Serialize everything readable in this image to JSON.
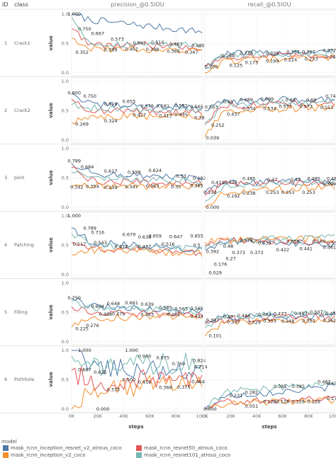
{
  "header": {
    "id_label": "ID",
    "class_label": "class"
  },
  "columns": [
    "precision_@0.5IOU",
    "recall_@0.5IOU"
  ],
  "x_axis_title": "steps",
  "y_axis_title": "value",
  "legend": {
    "title": "model",
    "entries": [
      {
        "name": "mask_rcnn_inception_resnet_v2_atrous_coco",
        "color": "#4e79a7"
      },
      {
        "name": "mask_rcnn_resnet50_atrous_coco",
        "color": "#e15759"
      },
      {
        "name": "mask_rcnn_inception_v2_coco",
        "color": "#f28e2b"
      },
      {
        "name": "mask_rcnn_resnet101_atrous_coco",
        "color": "#76b7b2"
      }
    ]
  },
  "rows": [
    {
      "id": "1",
      "class": "Crack1"
    },
    {
      "id": "2",
      "class": "Crack2"
    },
    {
      "id": "3",
      "class": "Joint"
    },
    {
      "id": "4",
      "class": "Patching"
    },
    {
      "id": "5",
      "class": "Filling"
    },
    {
      "id": "6",
      "class": "Pothhole"
    }
  ],
  "chart_data": {
    "type": "line",
    "xlabel": "steps",
    "ylabel": "value",
    "xlim": [
      0,
      100000
    ],
    "ylim": [
      0,
      1
    ],
    "x_ticks": [
      "0K",
      "20K",
      "40K",
      "60K",
      "80K",
      "100K"
    ],
    "y_ticks": [
      "0.0",
      "0.5",
      "1.0"
    ],
    "series_names": [
      "mask_rcnn_inception_resnet_v2_atrous_coco",
      "mask_rcnn_resnet50_atrous_coco",
      "mask_rcnn_inception_v2_coco",
      "mask_rcnn_resnet101_atrous_coco"
    ],
    "panels": [
      {
        "row": "Crack1",
        "metric": "precision_@0.5IOU",
        "labels": [
          [
            2000,
            1.0,
            "1.000"
          ],
          [
            10000,
            0.75,
            "0.750"
          ],
          [
            20000,
            0.667,
            "0.667"
          ],
          [
            35000,
            0.573,
            "0.573"
          ],
          [
            52000,
            0.507,
            "0.507"
          ],
          [
            66000,
            0.516,
            "0.516"
          ],
          [
            80000,
            0.487,
            "0.487"
          ],
          [
            97000,
            0.465,
            "0.465"
          ],
          [
            8000,
            0.352,
            "0.352"
          ],
          [
            30000,
            0.389,
            "0.389"
          ],
          [
            46000,
            0.402,
            "0.402"
          ],
          [
            62000,
            0.398,
            "0.398"
          ],
          [
            78000,
            0.369,
            "0.369"
          ],
          [
            92000,
            0.347,
            "0.347"
          ]
        ]
      },
      {
        "row": "Crack1",
        "metric": "recall_@0.5IOU",
        "labels": [
          [
            5000,
            0.1,
            "0.100"
          ],
          [
            18000,
            0.288,
            "0.288"
          ],
          [
            32000,
            0.338,
            "0.338"
          ],
          [
            52000,
            0.329,
            "0.329"
          ],
          [
            68000,
            0.353,
            "0.353"
          ],
          [
            80000,
            0.357,
            "0.357"
          ],
          [
            96000,
            0.377,
            "0.377"
          ],
          [
            24000,
            0.125,
            "0.125"
          ],
          [
            36000,
            0.173,
            "0.173"
          ],
          [
            52000,
            0.199,
            "0.199"
          ],
          [
            66000,
            0.224,
            "0.224"
          ],
          [
            82000,
            0.233,
            "0.233"
          ],
          [
            98000,
            0.269,
            "0.269"
          ]
        ]
      },
      {
        "row": "Crack2",
        "metric": "precision_@0.5IOU",
        "labels": [
          [
            2000,
            0.8,
            "0.800"
          ],
          [
            14000,
            0.75,
            "0.750"
          ],
          [
            30000,
            0.616,
            "0.616"
          ],
          [
            44000,
            0.655,
            "0.655"
          ],
          [
            58000,
            0.579,
            "0.579"
          ],
          [
            70000,
            0.581,
            "0.581"
          ],
          [
            84000,
            0.582,
            "0.582"
          ],
          [
            96000,
            0.565,
            "0.565"
          ],
          [
            8000,
            0.269,
            "0.269"
          ],
          [
            30000,
            0.324,
            "0.324"
          ],
          [
            52000,
            0.427,
            "0.427"
          ],
          [
            72000,
            0.413,
            "0.413"
          ],
          [
            84000,
            0.435,
            "0.435"
          ],
          [
            98000,
            0.38,
            "0.38"
          ]
        ]
      },
      {
        "row": "Crack2",
        "metric": "recall_@0.5IOU",
        "labels": [
          [
            5000,
            0.563,
            "0.563"
          ],
          [
            18000,
            0.65,
            "0.65"
          ],
          [
            32000,
            0.689,
            "0.689"
          ],
          [
            48000,
            0.699,
            "0.699"
          ],
          [
            66000,
            0.68,
            "0.68"
          ],
          [
            82000,
            0.68,
            "0.68"
          ],
          [
            98000,
            0.748,
            "0.748"
          ],
          [
            10000,
            0.252,
            "0.252"
          ],
          [
            22000,
            0.437,
            "0.437"
          ],
          [
            34000,
            0.534,
            "0.534"
          ],
          [
            50000,
            0.534,
            "0.534"
          ],
          [
            62000,
            0.573,
            "0.573"
          ],
          [
            78000,
            0.573,
            "0.573"
          ],
          [
            94000,
            0.553,
            "0.553"
          ],
          [
            6000,
            0.039,
            "0.039"
          ]
        ]
      },
      {
        "row": "Joint",
        "metric": "precision_@0.5IOU",
        "labels": [
          [
            2000,
            0.789,
            "0.789"
          ],
          [
            12000,
            0.684,
            "0.684"
          ],
          [
            30000,
            0.617,
            "0.617"
          ],
          [
            48000,
            0.598,
            "0.598"
          ],
          [
            64000,
            0.624,
            "0.624"
          ],
          [
            84000,
            0.53,
            "0.53"
          ],
          [
            98000,
            0.492,
            "0.492"
          ],
          [
            4000,
            0.342,
            "0.342"
          ],
          [
            16000,
            0.354,
            "0.354"
          ],
          [
            30000,
            0.339,
            "0.339"
          ],
          [
            46000,
            0.347,
            "0.347"
          ],
          [
            62000,
            0.363,
            "0.363"
          ],
          [
            80000,
            0.35,
            "0.35"
          ],
          [
            96000,
            0.365,
            "0.365"
          ]
        ]
      },
      {
        "row": "Joint",
        "metric": "recall_@0.5IOU",
        "labels": [
          [
            10000,
            0.419,
            "0.419"
          ],
          [
            20000,
            0.429,
            "0.429"
          ],
          [
            34000,
            0.485,
            "0.485"
          ],
          [
            52000,
            0.47,
            "0.47"
          ],
          [
            70000,
            0.47,
            "0.47"
          ],
          [
            84000,
            0.485,
            "0.485"
          ],
          [
            99000,
            0.485,
            "0.485"
          ],
          [
            4000,
            0.253,
            "0.253"
          ],
          [
            22000,
            0.192,
            "0.192"
          ],
          [
            34000,
            0.238,
            "0.238"
          ],
          [
            52000,
            0.253,
            "0.253"
          ],
          [
            64000,
            0.253,
            "0.253"
          ],
          [
            80000,
            0.253,
            "0.253"
          ],
          [
            96000,
            0.399,
            "0.399"
          ],
          [
            6000,
            0.0,
            "0.000"
          ]
        ]
      },
      {
        "row": "Patching",
        "metric": "precision_@0.5IOU",
        "labels": [
          [
            2000,
            1.0,
            "1.000"
          ],
          [
            14000,
            0.789,
            "0.789"
          ],
          [
            20000,
            0.716,
            "0.716"
          ],
          [
            44000,
            0.679,
            "0.679"
          ],
          [
            56000,
            0.638,
            "0.638"
          ],
          [
            64000,
            0.659,
            "0.659"
          ],
          [
            80000,
            0.647,
            "0.647"
          ],
          [
            96000,
            0.655,
            "0.655"
          ],
          [
            6000,
            0.517,
            "0.517"
          ],
          [
            22000,
            0.543,
            "0.543"
          ],
          [
            38000,
            0.474,
            "0.474"
          ],
          [
            56000,
            0.477,
            "0.477"
          ],
          [
            74000,
            0.516,
            "0.516"
          ],
          [
            96000,
            0.5,
            "0.5"
          ]
        ]
      },
      {
        "row": "Patching",
        "metric": "recall_@0.5IOU",
        "labels": [
          [
            6000,
            0.392,
            "0.392"
          ],
          [
            18000,
            0.48,
            "0.48"
          ],
          [
            32000,
            0.578,
            "0.578"
          ],
          [
            46000,
            0.539,
            "0.539"
          ],
          [
            68000,
            0.559,
            "0.559"
          ],
          [
            88000,
            0.569,
            "0.569"
          ],
          [
            99000,
            0.539,
            "0.539"
          ],
          [
            12000,
            0.176,
            "0.176"
          ],
          [
            20000,
            0.27,
            "0.27"
          ],
          [
            26000,
            0.373,
            "0.373"
          ],
          [
            40000,
            0.373,
            "0.373"
          ],
          [
            60000,
            0.422,
            "0.422"
          ],
          [
            78000,
            0.441,
            "0.441"
          ],
          [
            96000,
            0.461,
            "0.461"
          ],
          [
            8000,
            0.029,
            "0.029"
          ]
        ]
      },
      {
        "row": "Filling",
        "metric": "precision_@0.5IOU",
        "labels": [
          [
            2000,
            0.75,
            "0.750"
          ],
          [
            20000,
            0.604,
            "0.604"
          ],
          [
            32000,
            0.648,
            "0.648"
          ],
          [
            46000,
            0.661,
            "0.661"
          ],
          [
            58000,
            0.639,
            "0.639"
          ],
          [
            72000,
            0.585,
            "0.585"
          ],
          [
            84000,
            0.563,
            "0.563"
          ],
          [
            96000,
            0.565,
            "0.565"
          ],
          [
            8000,
            0.225,
            "0.225"
          ],
          [
            16000,
            0.276,
            "0.276"
          ],
          [
            26000,
            0.468,
            "0.468"
          ],
          [
            36000,
            0.475,
            "0.475"
          ],
          [
            58000,
            0.463,
            "0.463"
          ],
          [
            78000,
            0.464,
            "0.464"
          ],
          [
            96000,
            0.434,
            "0.434"
          ]
        ]
      },
      {
        "row": "Filling",
        "metric": "recall_@0.5IOU",
        "labels": [
          [
            6000,
            0.367,
            "0.367"
          ],
          [
            18000,
            0.42,
            "0.42"
          ],
          [
            30000,
            0.444,
            "0.444"
          ],
          [
            46000,
            0.464,
            "0.464"
          ],
          [
            58000,
            0.473,
            "0.473"
          ],
          [
            74000,
            0.483,
            "0.483"
          ],
          [
            86000,
            0.507,
            "0.507"
          ],
          [
            98000,
            0.483,
            "0.483"
          ],
          [
            22000,
            0.337,
            "0.337"
          ],
          [
            38000,
            0.329,
            "0.329"
          ],
          [
            50000,
            0.353,
            "0.353"
          ],
          [
            64000,
            0.348,
            "0.348"
          ],
          [
            80000,
            0.353,
            "0.353"
          ],
          [
            96000,
            0.362,
            "0.362"
          ],
          [
            8000,
            0.101,
            "0.101"
          ]
        ]
      },
      {
        "row": "Pothhole",
        "metric": "precision_@0.5IOU",
        "labels": [
          [
            10000,
            1.0,
            "1.000"
          ],
          [
            46000,
            1.0,
            "1.000"
          ],
          [
            56000,
            0.9,
            "0.900"
          ],
          [
            70000,
            0.875,
            "0.875"
          ],
          [
            82000,
            0.769,
            "0.769"
          ],
          [
            98000,
            0.824,
            "0.824"
          ],
          [
            99000,
            0.714,
            "0.714"
          ],
          [
            10000,
            0.667,
            "0.667"
          ],
          [
            22000,
            0.625,
            "0.625"
          ],
          [
            32000,
            0.333,
            "0.333"
          ],
          [
            44000,
            0.5,
            "0.500"
          ],
          [
            56000,
            0.455,
            "0.455"
          ],
          [
            72000,
            0.368,
            "0.368"
          ],
          [
            86000,
            0.375,
            "0.375"
          ],
          [
            97000,
            0.464,
            "0.464"
          ],
          [
            24000,
            0.0,
            "0.000"
          ]
        ]
      },
      {
        "row": "Pothhole",
        "metric": "recall_@0.5IOU",
        "labels": [
          [
            4000,
            0.0,
            "0.000"
          ],
          [
            24000,
            0.231,
            "0.231"
          ],
          [
            36000,
            0.282,
            "0.282"
          ],
          [
            58000,
            0.385,
            "0.385"
          ],
          [
            72000,
            0.385,
            "0.385"
          ],
          [
            92000,
            0.462,
            "0.462"
          ],
          [
            99000,
            0.436,
            "0.436"
          ],
          [
            36000,
            0.051,
            "0.051"
          ],
          [
            50000,
            0.128,
            "0.128"
          ],
          [
            60000,
            0.128,
            "0.128"
          ],
          [
            72000,
            0.128,
            "0.128"
          ],
          [
            84000,
            0.128,
            "0.128"
          ],
          [
            99000,
            0.179,
            "0.179"
          ]
        ]
      }
    ]
  }
}
